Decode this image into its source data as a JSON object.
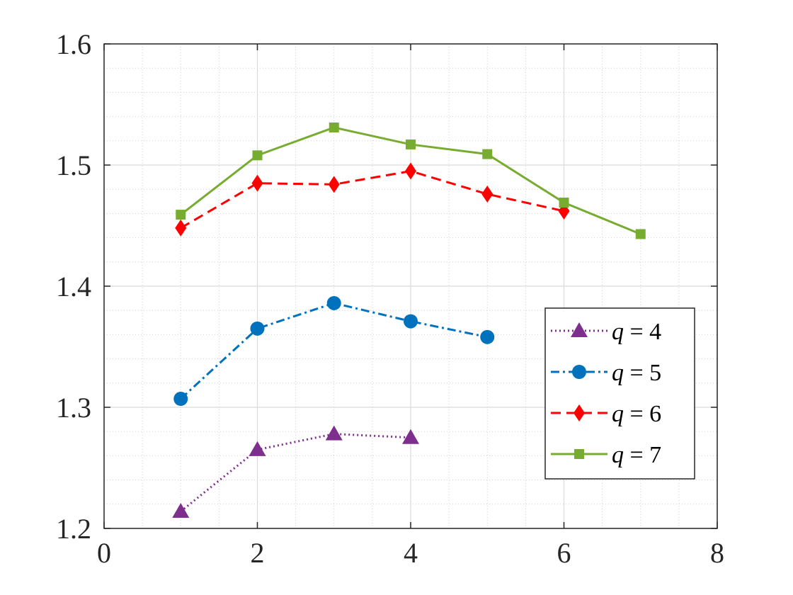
{
  "chart_data": {
    "type": "line",
    "title": "",
    "xlabel": "",
    "ylabel": "",
    "xlim": [
      0,
      8
    ],
    "ylim": [
      1.2,
      1.6
    ],
    "xticks": [
      0,
      2,
      4,
      6,
      8
    ],
    "yticks": [
      1.2,
      1.3,
      1.4,
      1.5,
      1.6
    ],
    "xtick_labels": [
      "0",
      "2",
      "4",
      "6",
      "8"
    ],
    "ytick_labels": [
      "1.2",
      "1.3",
      "1.4",
      "1.5",
      "1.6"
    ],
    "grid": true,
    "minor_grid": true,
    "legend_position": "bottom-right",
    "series": [
      {
        "name": "q = 4",
        "legend_var": "q",
        "legend_rest": " = 4",
        "color": "#7E2F8E",
        "line_style": "dotted",
        "marker": "triangle",
        "x": [
          1,
          2,
          3,
          4
        ],
        "y": [
          1.214,
          1.265,
          1.278,
          1.275
        ]
      },
      {
        "name": "q = 5",
        "legend_var": "q",
        "legend_rest": " = 5",
        "color": "#0072BD",
        "line_style": "dashdot",
        "marker": "circle",
        "x": [
          1,
          2,
          3,
          4,
          5
        ],
        "y": [
          1.307,
          1.365,
          1.386,
          1.371,
          1.358
        ]
      },
      {
        "name": "q = 6",
        "legend_var": "q",
        "legend_rest": " = 6",
        "color": "#FF0000",
        "line_style": "dashed",
        "marker": "diamond",
        "x": [
          1,
          2,
          3,
          4,
          5,
          6
        ],
        "y": [
          1.448,
          1.485,
          1.484,
          1.495,
          1.476,
          1.462
        ]
      },
      {
        "name": "q = 7",
        "legend_var": "q",
        "legend_rest": " = 7",
        "color": "#77AC30",
        "line_style": "solid",
        "marker": "square",
        "x": [
          1,
          2,
          3,
          4,
          5,
          6,
          7
        ],
        "y": [
          1.459,
          1.508,
          1.531,
          1.517,
          1.509,
          1.469,
          1.443
        ]
      }
    ]
  }
}
